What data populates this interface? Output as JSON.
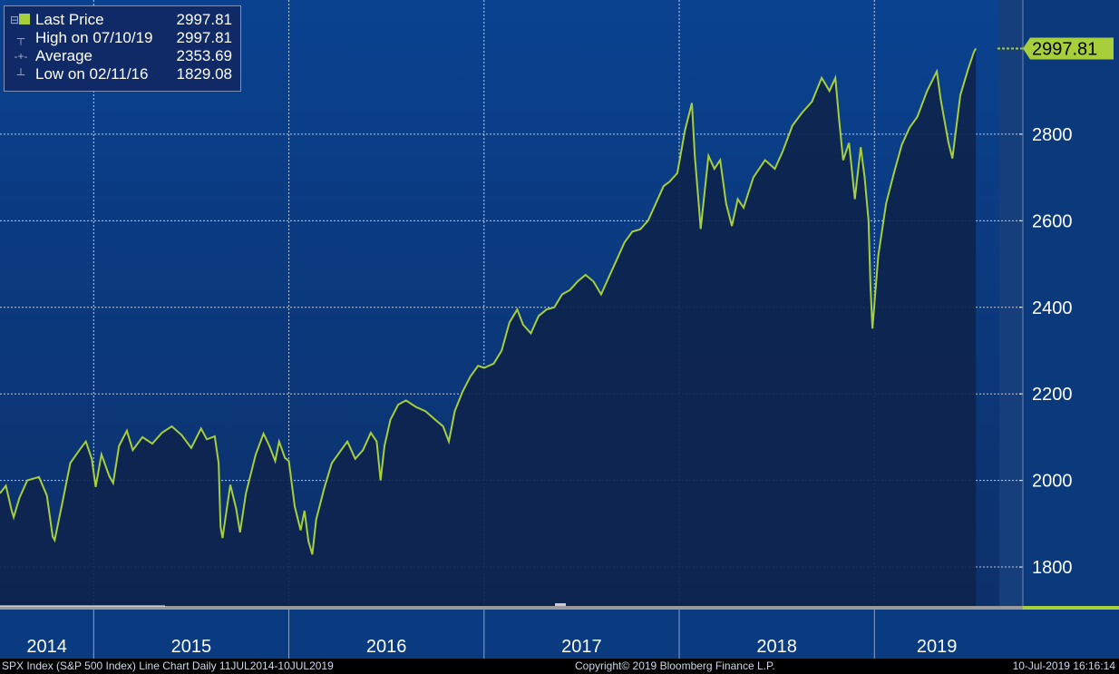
{
  "colors": {
    "background": "#0b3a7c",
    "plot_top": "#0a4290",
    "plot_bottom": "#0c306a",
    "area_fill": "#0e244d",
    "line": "#a7cf3c",
    "grid": "#ffffff",
    "axis_text": "#ffffff",
    "future_band": "#163e7a"
  },
  "legend": {
    "rows": [
      {
        "label": "Last Price",
        "value": "2997.81"
      },
      {
        "label": "High on 07/10/19",
        "value": "2997.81"
      },
      {
        "label": "Average",
        "value": "2353.69"
      },
      {
        "label": "Low on 02/11/16",
        "value": "1829.08"
      }
    ]
  },
  "footer": {
    "left": "SPX Index (S&P 500 Index) Line Chart  Daily 11JUL2014-10JUL2019",
    "center": "Copyright© 2019 Bloomberg Finance L.P.",
    "right": "10-Jul-2019 16:16:14"
  },
  "chart_data": {
    "type": "line",
    "ylim": [
      1710,
      3110
    ],
    "xlim": [
      2014.52,
      2019.64
    ],
    "yticks": [
      1800,
      2000,
      2200,
      2400,
      2600,
      2800
    ],
    "year_labels": [
      "2014",
      "2015",
      "2016",
      "2017",
      "2018",
      "2019"
    ],
    "last_price_label": "2997.81",
    "last_price": 2997.81,
    "series": [
      {
        "values": [
          [
            2014.52,
            1970
          ],
          [
            2014.55,
            1988
          ],
          [
            2014.58,
            1930
          ],
          [
            2014.59,
            1915
          ],
          [
            2014.62,
            1960
          ],
          [
            2014.66,
            2000
          ],
          [
            2014.72,
            2008
          ],
          [
            2014.76,
            1965
          ],
          [
            2014.79,
            1870
          ],
          [
            2014.8,
            1862
          ],
          [
            2014.84,
            1950
          ],
          [
            2014.88,
            2040
          ],
          [
            2014.93,
            2072
          ],
          [
            2014.96,
            2090
          ],
          [
            2014.99,
            2050
          ],
          [
            2015.01,
            1985
          ],
          [
            2015.04,
            2060
          ],
          [
            2015.08,
            2010
          ],
          [
            2015.1,
            1994
          ],
          [
            2015.13,
            2080
          ],
          [
            2015.17,
            2115
          ],
          [
            2015.2,
            2070
          ],
          [
            2015.25,
            2100
          ],
          [
            2015.3,
            2085
          ],
          [
            2015.35,
            2110
          ],
          [
            2015.4,
            2125
          ],
          [
            2015.45,
            2105
          ],
          [
            2015.5,
            2075
          ],
          [
            2015.55,
            2120
          ],
          [
            2015.58,
            2095
          ],
          [
            2015.62,
            2102
          ],
          [
            2015.64,
            2040
          ],
          [
            2015.65,
            1893
          ],
          [
            2015.66,
            1867
          ],
          [
            2015.7,
            1990
          ],
          [
            2015.73,
            1935
          ],
          [
            2015.75,
            1880
          ],
          [
            2015.78,
            1970
          ],
          [
            2015.83,
            2060
          ],
          [
            2015.87,
            2108
          ],
          [
            2015.9,
            2080
          ],
          [
            2015.93,
            2045
          ],
          [
            2015.95,
            2090
          ],
          [
            2015.98,
            2052
          ],
          [
            2016.0,
            2045
          ],
          [
            2016.01,
            2010
          ],
          [
            2016.03,
            1940
          ],
          [
            2016.06,
            1885
          ],
          [
            2016.08,
            1930
          ],
          [
            2016.1,
            1860
          ],
          [
            2016.11,
            1845
          ],
          [
            2016.12,
            1829
          ],
          [
            2016.14,
            1910
          ],
          [
            2016.18,
            1980
          ],
          [
            2016.22,
            2040
          ],
          [
            2016.26,
            2065
          ],
          [
            2016.3,
            2090
          ],
          [
            2016.34,
            2050
          ],
          [
            2016.38,
            2070
          ],
          [
            2016.42,
            2110
          ],
          [
            2016.45,
            2090
          ],
          [
            2016.47,
            2000
          ],
          [
            2016.49,
            2080
          ],
          [
            2016.52,
            2140
          ],
          [
            2016.56,
            2175
          ],
          [
            2016.6,
            2185
          ],
          [
            2016.65,
            2170
          ],
          [
            2016.7,
            2160
          ],
          [
            2016.75,
            2140
          ],
          [
            2016.79,
            2125
          ],
          [
            2016.82,
            2090
          ],
          [
            2016.85,
            2160
          ],
          [
            2016.89,
            2205
          ],
          [
            2016.93,
            2240
          ],
          [
            2016.97,
            2265
          ],
          [
            2017.0,
            2260
          ],
          [
            2017.05,
            2270
          ],
          [
            2017.09,
            2300
          ],
          [
            2017.13,
            2365
          ],
          [
            2017.17,
            2395
          ],
          [
            2017.2,
            2360
          ],
          [
            2017.24,
            2340
          ],
          [
            2017.28,
            2380
          ],
          [
            2017.32,
            2395
          ],
          [
            2017.36,
            2400
          ],
          [
            2017.4,
            2430
          ],
          [
            2017.44,
            2440
          ],
          [
            2017.48,
            2460
          ],
          [
            2017.52,
            2475
          ],
          [
            2017.56,
            2460
          ],
          [
            2017.6,
            2430
          ],
          [
            2017.64,
            2470
          ],
          [
            2017.68,
            2510
          ],
          [
            2017.72,
            2550
          ],
          [
            2017.76,
            2575
          ],
          [
            2017.8,
            2580
          ],
          [
            2017.84,
            2600
          ],
          [
            2017.88,
            2640
          ],
          [
            2017.92,
            2680
          ],
          [
            2017.95,
            2690
          ],
          [
            2017.99,
            2710
          ],
          [
            2018.03,
            2810
          ],
          [
            2018.065,
            2872
          ],
          [
            2018.08,
            2750
          ],
          [
            2018.1,
            2640
          ],
          [
            2018.11,
            2581
          ],
          [
            2018.15,
            2750
          ],
          [
            2018.18,
            2720
          ],
          [
            2018.21,
            2740
          ],
          [
            2018.24,
            2640
          ],
          [
            2018.27,
            2588
          ],
          [
            2018.3,
            2650
          ],
          [
            2018.33,
            2630
          ],
          [
            2018.38,
            2700
          ],
          [
            2018.44,
            2740
          ],
          [
            2018.49,
            2720
          ],
          [
            2018.53,
            2760
          ],
          [
            2018.58,
            2820
          ],
          [
            2018.63,
            2850
          ],
          [
            2018.68,
            2875
          ],
          [
            2018.73,
            2930
          ],
          [
            2018.77,
            2900
          ],
          [
            2018.8,
            2930
          ],
          [
            2018.82,
            2830
          ],
          [
            2018.84,
            2740
          ],
          [
            2018.87,
            2780
          ],
          [
            2018.9,
            2650
          ],
          [
            2018.93,
            2770
          ],
          [
            2018.95,
            2700
          ],
          [
            2018.97,
            2600
          ],
          [
            2018.98,
            2450
          ],
          [
            2018.99,
            2351
          ],
          [
            2019.02,
            2520
          ],
          [
            2019.06,
            2640
          ],
          [
            2019.1,
            2710
          ],
          [
            2019.14,
            2775
          ],
          [
            2019.18,
            2815
          ],
          [
            2019.22,
            2840
          ],
          [
            2019.27,
            2900
          ],
          [
            2019.32,
            2945
          ],
          [
            2019.34,
            2880
          ],
          [
            2019.38,
            2780
          ],
          [
            2019.4,
            2744
          ],
          [
            2019.44,
            2890
          ],
          [
            2019.48,
            2950
          ],
          [
            2019.51,
            2990
          ],
          [
            2019.52,
            2997.81
          ]
        ]
      }
    ]
  }
}
